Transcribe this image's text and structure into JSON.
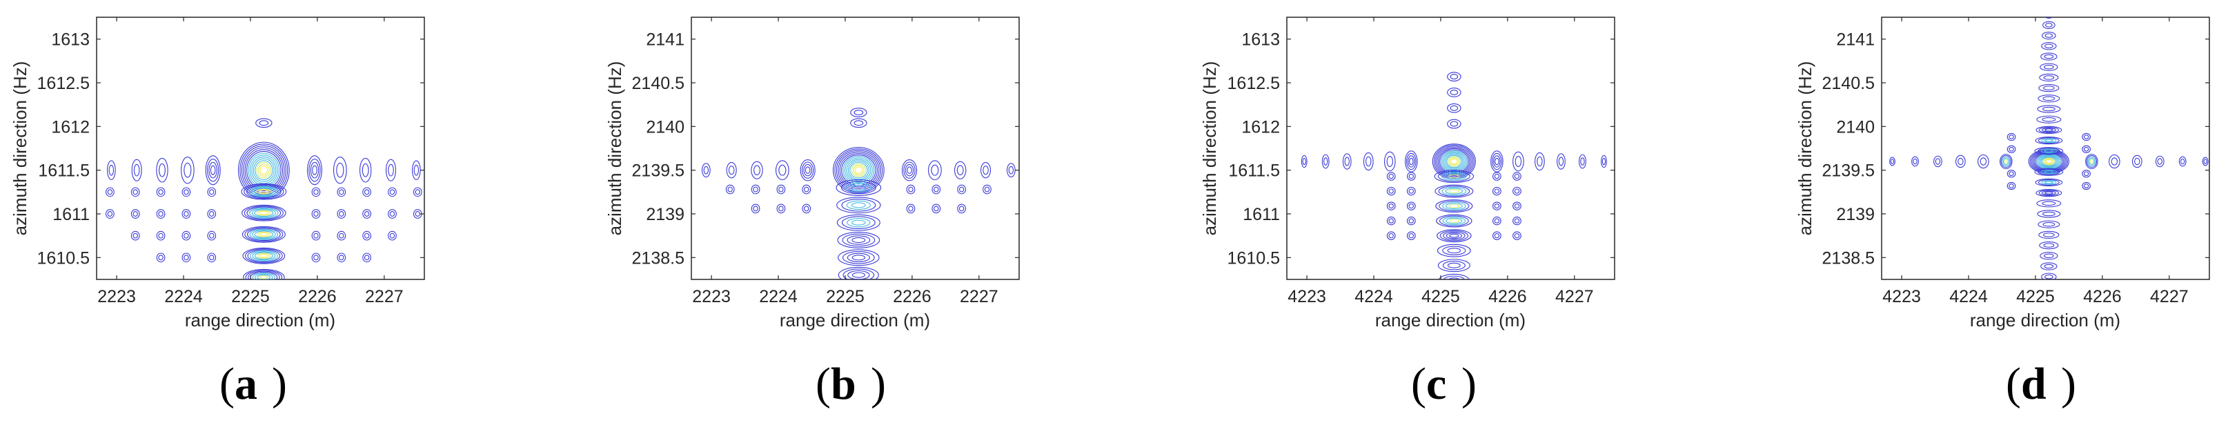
{
  "chart_data": [
    {
      "type": "contour",
      "panel_label": "a",
      "xlabel": "range direction (m)",
      "ylabel": "azimuth direction (Hz)",
      "xlim": [
        2222.7,
        2227.6
      ],
      "ylim": [
        1610.25,
        1613.25
      ],
      "xticks": [
        2223,
        2224,
        2225,
        2226,
        2227
      ],
      "xtick_labels": [
        "2223",
        "2224",
        "2225",
        "2226",
        "2227"
      ],
      "yticks": [
        1610.5,
        1611,
        1611.5,
        1612,
        1612.5,
        1613
      ],
      "ytick_labels": [
        "1610.5",
        "1611",
        "1611.5",
        "1612",
        "1612.5",
        "1613"
      ],
      "peak": [
        2225.2,
        1611.5
      ],
      "pattern": "vertical-stack-below"
    },
    {
      "type": "contour",
      "panel_label": "b",
      "xlabel": "range direction (m)",
      "ylabel": "azimuth direction (Hz)",
      "xlim": [
        2222.7,
        2227.6
      ],
      "ylim": [
        2138.25,
        2141.25
      ],
      "xticks": [
        2223,
        2224,
        2225,
        2226,
        2227
      ],
      "xtick_labels": [
        "2223",
        "2224",
        "2225",
        "2226",
        "2227"
      ],
      "yticks": [
        2138.5,
        2139,
        2139.5,
        2140,
        2140.5,
        2141
      ],
      "ytick_labels": [
        "2138.5",
        "2139",
        "2139.5",
        "2140",
        "2140.5",
        "2141"
      ],
      "peak": [
        2225.2,
        2139.5
      ],
      "pattern": "vertical-stack-below-small"
    },
    {
      "type": "contour",
      "panel_label": "c",
      "xlabel": "range direction (m)",
      "ylabel": "azimuth direction (Hz)",
      "xlim": [
        4222.7,
        4227.6
      ],
      "ylim": [
        1610.25,
        1613.25
      ],
      "xticks": [
        4223,
        4224,
        4225,
        4226,
        4227
      ],
      "xtick_labels": [
        "4223",
        "4224",
        "4225",
        "4226",
        "4227"
      ],
      "yticks": [
        1610.5,
        1611,
        1611.5,
        1612,
        1612.5,
        1613
      ],
      "ytick_labels": [
        "1610.5",
        "1611",
        "1611.5",
        "1612",
        "1612.5",
        "1613"
      ],
      "peak": [
        4225.2,
        1611.6
      ],
      "pattern": "cross-lower"
    },
    {
      "type": "contour",
      "panel_label": "d",
      "xlabel": "range direction (m)",
      "ylabel": "azimuth direction (Hz)",
      "xlim": [
        4222.7,
        4227.6
      ],
      "ylim": [
        2138.25,
        2141.25
      ],
      "xticks": [
        4223,
        4224,
        4225,
        4226,
        4227
      ],
      "xtick_labels": [
        "4223",
        "4224",
        "4225",
        "4226",
        "4227"
      ],
      "yticks": [
        2138.5,
        2139,
        2139.5,
        2140,
        2140.5,
        2141
      ],
      "ytick_labels": [
        "2138.5",
        "2139",
        "2139.5",
        "2140",
        "2140.5",
        "2141"
      ],
      "peak": [
        4225.2,
        2139.6
      ],
      "pattern": "symmetric-cross"
    }
  ],
  "colors": {
    "outer": "#3a3ad8",
    "mid": "#43b6e0",
    "inner": "#d8eb6a",
    "core": "#ffe94a",
    "axis": "#262626"
  }
}
